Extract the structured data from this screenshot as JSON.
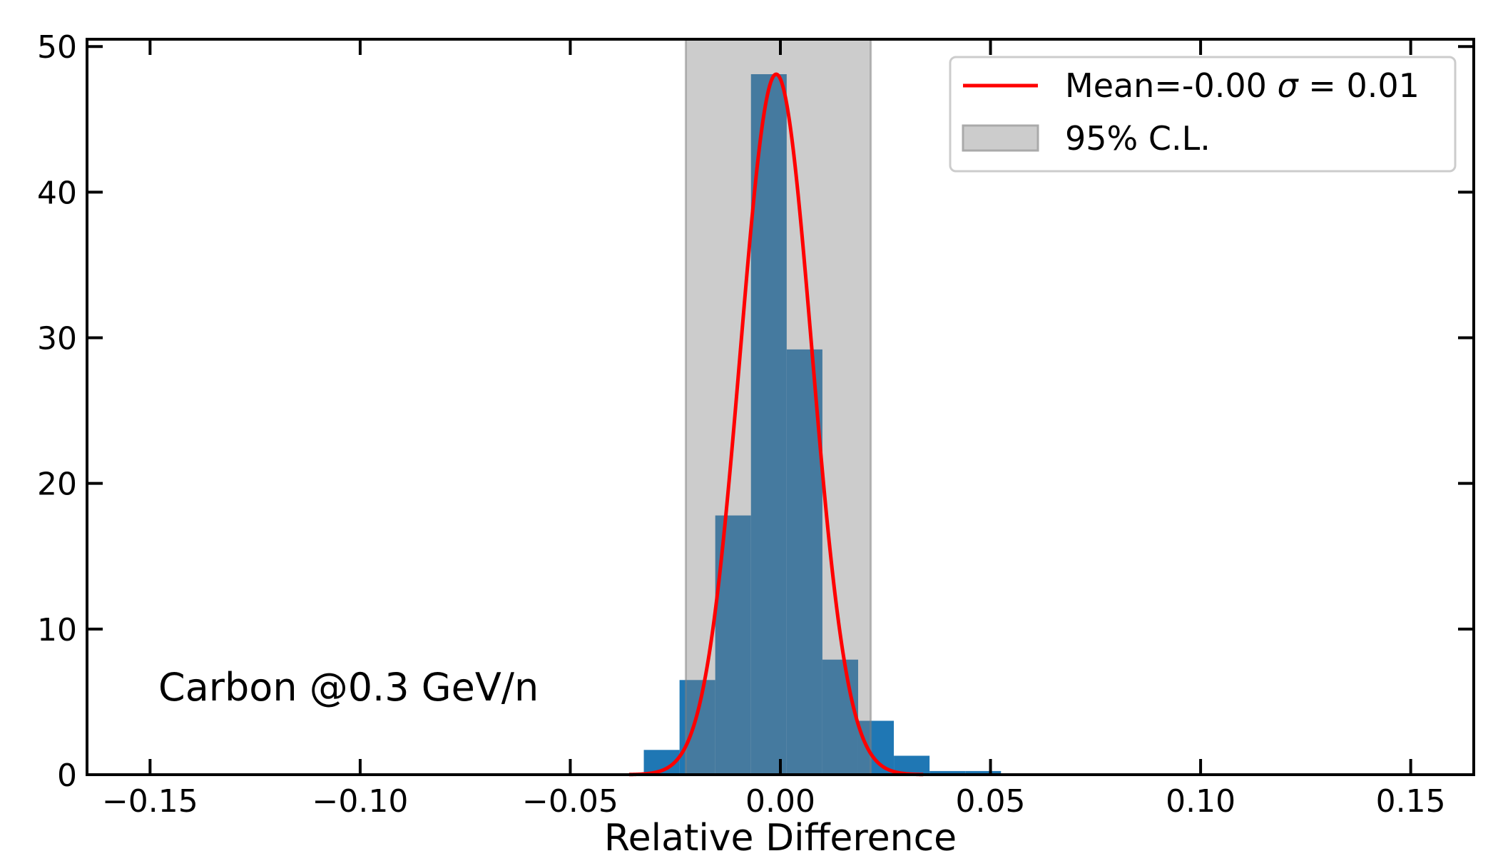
{
  "chart_data": {
    "type": "bar",
    "title": "",
    "xlabel": "Relative Difference",
    "ylabel": "",
    "xlim": [
      -0.165,
      0.165
    ],
    "ylim": [
      0,
      50.5
    ],
    "xticks": [
      -0.15,
      -0.1,
      -0.05,
      0.0,
      0.05,
      0.1,
      0.15
    ],
    "xtick_labels": [
      "−0.15",
      "−0.10",
      "−0.05",
      "0.00",
      "0.05",
      "0.10",
      "0.15"
    ],
    "yticks": [
      0,
      10,
      20,
      30,
      40,
      50
    ],
    "ytick_labels": [
      "0",
      "10",
      "20",
      "30",
      "40",
      "50"
    ],
    "grid": false,
    "legend_position": "top-right",
    "histogram": {
      "bin_edges": [
        -0.0325,
        -0.024,
        -0.0155,
        -0.007,
        0.0015,
        0.01,
        0.0185,
        0.027,
        0.0355,
        0.044,
        0.0525
      ],
      "counts": [
        1.7,
        6.5,
        17.8,
        48.1,
        29.2,
        7.9,
        3.7,
        1.3,
        0.25,
        0.25
      ],
      "color": "#1f77b4"
    },
    "gaussian_fit": {
      "label_prefix": "Mean=-0.00 ",
      "label_symbol": "σ",
      "label_suffix": " = 0.01",
      "mean": -0.001,
      "sigma": 0.0085,
      "amplitude": 48.1,
      "color": "#ff0000"
    },
    "confidence_band": {
      "label": "95% C.L.",
      "x_range": [
        -0.0225,
        0.0215
      ],
      "color": "#cccccc"
    },
    "annotation": "Carbon @0.3 GeV/n"
  }
}
